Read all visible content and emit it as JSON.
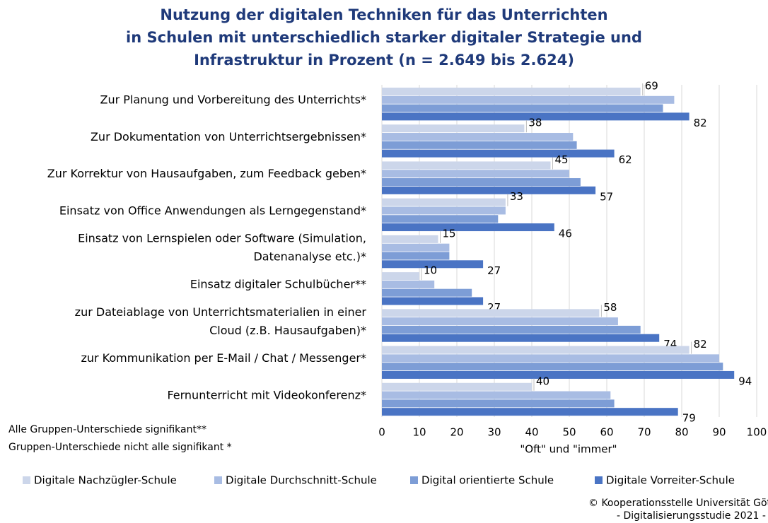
{
  "chart_data": {
    "type": "bar",
    "orientation": "horizontal",
    "title": [
      "Nutzung der digitalen Techniken für das Unterrichten",
      "in Schulen mit unterschiedlich starker digitaler Strategie und",
      "Infrastruktur in Prozent (n =  2.649 bis 2.624)"
    ],
    "categories": [
      [
        "Zur Planung und Vorbereitung des Unterrichts*"
      ],
      [
        "Zur Dokumentation von Unterrichtsergebnissen*"
      ],
      [
        "Zur Korrektur von Hausaufgaben, zum Feedback geben*"
      ],
      [
        "Einsatz von Office Anwendungen als Lerngegenstand*"
      ],
      [
        "Einsatz von Lernspielen oder Software (Simulation,",
        "Datenanalyse etc.)*"
      ],
      [
        "Einsatz digitaler Schulbücher**"
      ],
      [
        "zur Dateiablage von Unterrichtsmaterialien in einer",
        "Cloud (z.B. Hausaufgaben)*"
      ],
      [
        "zur Kommunikation per E-Mail / Chat / Messenger*"
      ],
      [
        "Fernunterricht mit Videokonferenz*"
      ]
    ],
    "series": [
      {
        "name": "Digitale Nachzügler-Schule",
        "color": "#ccd6ea",
        "values": [
          69,
          38,
          45,
          33,
          15,
          10,
          58,
          82,
          40
        ],
        "labels": true,
        "label_color": "#595959"
      },
      {
        "name": "Digitale Durchschnitt-Schule",
        "color": "#a8bce3",
        "values": [
          78,
          51,
          50,
          33,
          18,
          14,
          63,
          90,
          61
        ],
        "labels": false
      },
      {
        "name": "Digital orientierte Schule",
        "color": "#7d9dd6",
        "values": [
          75,
          52,
          53,
          31,
          18,
          24,
          69,
          91,
          62
        ],
        "labels": false
      },
      {
        "name": "Digitale Vorreiter-Schule",
        "color": "#4a74c4",
        "values": [
          82,
          62,
          57,
          46,
          27,
          27,
          74,
          94,
          79
        ],
        "labels": true,
        "label_color": "#000000"
      }
    ],
    "xlim": [
      0,
      100
    ],
    "xticks": [
      0,
      10,
      20,
      30,
      40,
      50,
      60,
      70,
      80,
      90,
      100
    ],
    "grid": true,
    "xlabel": "\"Oft\" und \"immer\"",
    "notes": [
      "Alle Gruppen-Unterschiede signifikant**",
      "Gruppen-Unterschiede nicht alle signifikant *"
    ],
    "source": [
      "© Kooperationsstelle Universität Göttingen",
      "- Digitalisierungsstudie 2021 -"
    ],
    "legend": "bottom"
  }
}
